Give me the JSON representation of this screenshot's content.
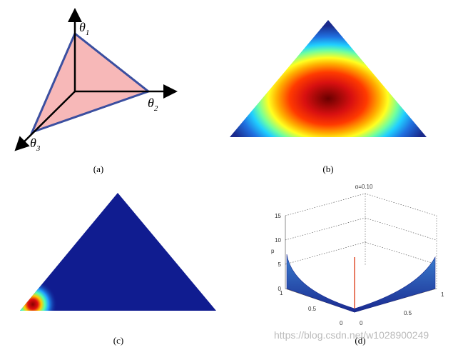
{
  "panels": [
    {
      "caption": "(a)",
      "labels": [
        "θ",
        "θ",
        "θ"
      ],
      "subscripts": [
        "1",
        "2",
        "3"
      ]
    },
    {
      "caption": "(b)"
    },
    {
      "caption": "(c)"
    },
    {
      "caption": "(d)",
      "title": "α=0.10",
      "z_label": "p",
      "z_ticks": [
        0,
        5,
        10,
        15
      ],
      "left_ticks": [
        1,
        0.5,
        0
      ],
      "right_ticks": [
        0,
        0.5,
        1
      ]
    }
  ],
  "watermark": "https://blog.csdn.net/w1028900249"
}
